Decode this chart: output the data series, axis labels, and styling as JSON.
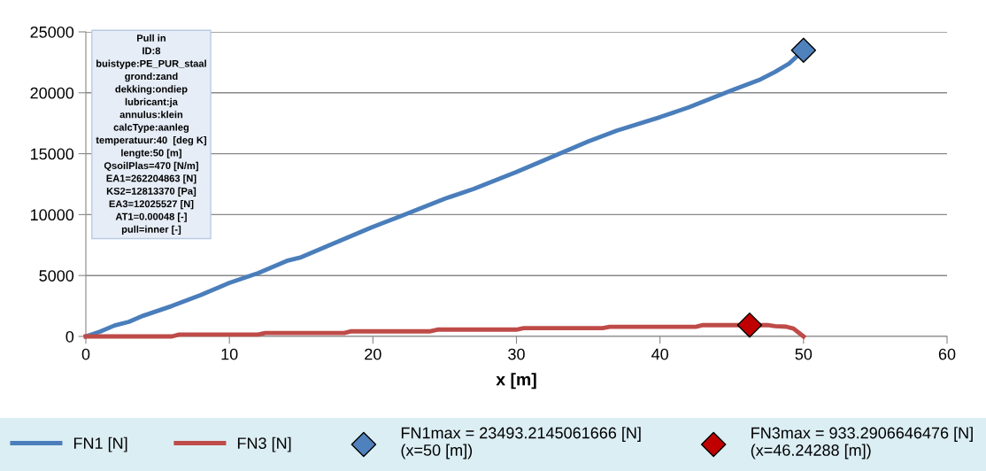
{
  "chart_data": {
    "type": "line",
    "xlabel": "x [m]",
    "xlim": [
      0,
      60
    ],
    "xticks": [
      0,
      10,
      20,
      30,
      40,
      50,
      60
    ],
    "ylim": [
      0,
      25000
    ],
    "yticks": [
      0,
      5000,
      10000,
      15000,
      20000,
      25000
    ],
    "grid": "y",
    "legend": "bottom",
    "annotations": [
      "Pull in\nID:8\nbuistype:PE_PUR_staal\ngrond:zand\ndekking:ondiep\nlubricant:ja\nannulus:klein\ncalcType:aanleg\ntemperatuur:40  [deg K]\nlengte:50 [m]\nQsoilPlas=470 [N/m]\nEA1=262204863 [N]\nKS2=12813370 [Pa]\nEA3=12025527 [N]\nAT1=0.00048 [-]\npull=inner [-]"
    ],
    "series": [
      {
        "name": "FN1 [N]",
        "marker": "none",
        "color": "#4a7ebb",
        "x": [
          0,
          1,
          2,
          3,
          4,
          5,
          6,
          8,
          10,
          12,
          14,
          15,
          17,
          20,
          22,
          25,
          27,
          30,
          32,
          35,
          37,
          40,
          42,
          45,
          47,
          48,
          49,
          50
        ],
        "values": [
          0,
          400,
          900,
          1200,
          1700,
          2100,
          2500,
          3400,
          4400,
          5200,
          6200,
          6500,
          7500,
          9000,
          9900,
          11300,
          12100,
          13500,
          14500,
          16000,
          16900,
          18000,
          18800,
          20200,
          21100,
          21700,
          22400,
          23500
        ]
      },
      {
        "name": "FN3 [N]",
        "marker": "none",
        "color": "#be4b48",
        "x": [
          0,
          6,
          6.5,
          12,
          12.5,
          18,
          18.5,
          24,
          24.5,
          30,
          30.5,
          36,
          36.5,
          42.5,
          43,
          47.5,
          48,
          48.8,
          49.3,
          50
        ],
        "values": [
          0,
          0,
          150,
          150,
          280,
          280,
          420,
          420,
          560,
          560,
          680,
          680,
          790,
          790,
          930,
          930,
          850,
          800,
          650,
          0
        ]
      },
      {
        "name": "FN1max = 23493.2145061666 [N]\n(x=50 [m])",
        "type": "scatter",
        "marker": "diamond",
        "color": "#4f81bd",
        "x": [
          50
        ],
        "values": [
          23493.2145061666
        ]
      },
      {
        "name": "FN3max = 933.2906646476 [N]\n(x=46.24288 [m])",
        "type": "scatter",
        "marker": "diamond",
        "color": "#c00000",
        "x": [
          46.24288
        ],
        "values": [
          933.2906646476
        ]
      }
    ]
  }
}
